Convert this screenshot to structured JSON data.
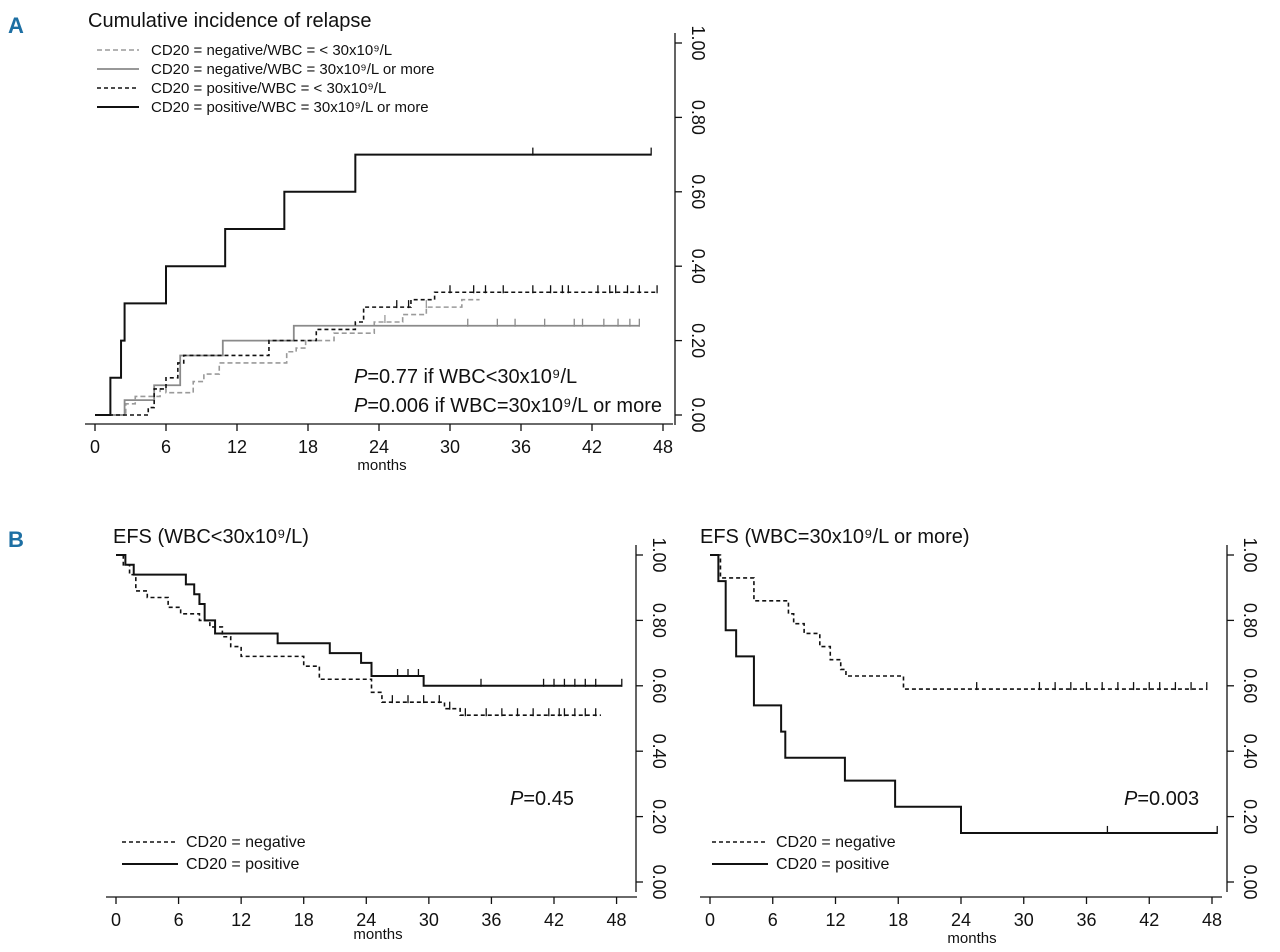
{
  "panels": {
    "a_letter": "A",
    "b_letter": "B"
  },
  "chart_data": [
    {
      "id": "A",
      "type": "line",
      "step": true,
      "title": "Cumulative incidence of relapse",
      "xlabel": "months",
      "ylabel": "",
      "xlim": [
        0,
        48
      ],
      "ylim": [
        0,
        1
      ],
      "xticks": [
        0,
        6,
        12,
        18,
        24,
        30,
        36,
        42,
        48
      ],
      "xtick_labels": [
        "0",
        "6",
        "12",
        "18",
        "24",
        "30",
        "36",
        "42",
        "48"
      ],
      "yticks": [
        0,
        0.2,
        0.4,
        0.6,
        0.8,
        1.0
      ],
      "ytick_labels": [
        "0.00",
        "0.20",
        "0.40",
        "0.60",
        "0.80",
        "1.00"
      ],
      "legend_position": "top-left",
      "series": [
        {
          "name": "CD20 = negative/WBC = < 30x10⁹/L",
          "style": "dashed-gray",
          "x": [
            0,
            2.6,
            3.4,
            5.5,
            6.0,
            8.3,
            9.2,
            10.5,
            15.5,
            16.2,
            17.0,
            17.8,
            19.2,
            20.2,
            22.0,
            23.6,
            24.5,
            26.0,
            28.0,
            31.0,
            32.5
          ],
          "y": [
            0,
            0.03,
            0.05,
            0.07,
            0.06,
            0.09,
            0.11,
            0.14,
            0.14,
            0.17,
            0.18,
            0.2,
            0.2,
            0.22,
            0.22,
            0.25,
            0.25,
            0.27,
            0.29,
            0.31,
            0.31
          ],
          "censor_x": [
            24.5,
            28.0
          ]
        },
        {
          "name": "CD20 = negative/WBC = 30x10⁹/L or more",
          "style": "solid-gray",
          "x": [
            0,
            2.5,
            5.0,
            7.2,
            10.8,
            16.8,
            23.7,
            46.0
          ],
          "y": [
            0,
            0.04,
            0.08,
            0.16,
            0.2,
            0.24,
            0.24,
            0.24
          ],
          "censor_x": [
            31.5,
            34.0,
            35.5,
            38.0,
            40.5,
            41.2,
            43.0,
            44.2,
            45.2,
            46.0
          ]
        },
        {
          "name": "CD20 = positive/WBC = < 30x10⁹/L",
          "style": "dashed-black",
          "x": [
            0,
            4.5,
            5.0,
            6.0,
            7.0,
            7.5,
            14.0,
            14.7,
            17.0,
            18.7,
            22.0,
            22.7,
            26.7,
            28.0,
            28.7,
            31.5,
            47.5
          ],
          "y": [
            0,
            0.02,
            0.07,
            0.1,
            0.14,
            0.16,
            0.16,
            0.2,
            0.2,
            0.23,
            0.25,
            0.29,
            0.31,
            0.31,
            0.33,
            0.33,
            0.33
          ],
          "censor_x": [
            25.5,
            26.5,
            30.0,
            32.0,
            33.0,
            34.5,
            37.0,
            38.5,
            39.5,
            40.0,
            42.5,
            43.5,
            44.0,
            45.0,
            46.0,
            47.5
          ]
        },
        {
          "name": "CD20 = positive/WBC = 30x10⁹/L or more",
          "style": "solid-black",
          "x": [
            0,
            1.3,
            2.2,
            2.5,
            6.0,
            11.0,
            16.0,
            22.0,
            47.0
          ],
          "y": [
            0,
            0.1,
            0.2,
            0.3,
            0.4,
            0.5,
            0.6,
            0.7,
            0.7
          ],
          "censor_x": [
            37.0,
            47.0
          ]
        }
      ],
      "annotations": [
        {
          "prefix": "P",
          "text": "=0.77 if WBC<30x10⁹/L"
        },
        {
          "prefix": "P",
          "text": "=0.006 if WBC=30x10⁹/L or more"
        }
      ]
    },
    {
      "id": "B1",
      "type": "line",
      "step": true,
      "title": "EFS (WBC<30x10⁹/L)",
      "xlabel": "months",
      "ylabel": "",
      "xlim": [
        0,
        49
      ],
      "ylim": [
        0,
        1
      ],
      "xticks": [
        0,
        6,
        12,
        18,
        24,
        30,
        36,
        42,
        48
      ],
      "xtick_labels": [
        "0",
        "6",
        "12",
        "18",
        "24",
        "30",
        "36",
        "42",
        "48"
      ],
      "yticks": [
        0,
        0.2,
        0.4,
        0.6,
        0.8,
        1.0
      ],
      "ytick_labels": [
        "0.00",
        "0.20",
        "0.40",
        "0.60",
        "0.80",
        "1.00"
      ],
      "legend_position": "bottom-left",
      "series": [
        {
          "name": "CD20 = negative",
          "style": "dashed-black",
          "x": [
            0,
            0.7,
            1.3,
            1.9,
            3.0,
            5.0,
            6.2,
            8.0,
            9.0,
            10.2,
            11.0,
            12.0,
            18.0,
            19.5,
            21.0,
            24.5,
            25.5,
            27.0,
            31.5,
            33.0,
            34.5,
            46.5
          ],
          "y": [
            1.0,
            0.97,
            0.94,
            0.89,
            0.87,
            0.84,
            0.82,
            0.8,
            0.78,
            0.75,
            0.72,
            0.69,
            0.66,
            0.62,
            0.62,
            0.58,
            0.55,
            0.55,
            0.53,
            0.51,
            0.51,
            0.51
          ],
          "censor_x": [
            26.5,
            28.0,
            29.5,
            31.0,
            32.0,
            33.5,
            35.5,
            37.0,
            38.5,
            40.0,
            41.5,
            42.5,
            43.0,
            44.0,
            45.0,
            46.0
          ]
        },
        {
          "name": "CD20 = positive",
          "style": "solid-black",
          "x": [
            0,
            0.9,
            1.7,
            6.7,
            7.5,
            8.0,
            8.5,
            9.5,
            15.5,
            20.5,
            23.5,
            24.5,
            29.5,
            48.5
          ],
          "y": [
            1.0,
            0.97,
            0.94,
            0.91,
            0.88,
            0.85,
            0.8,
            0.76,
            0.73,
            0.7,
            0.67,
            0.63,
            0.6,
            0.6
          ],
          "censor_x": [
            27.0,
            28.0,
            29.0,
            35.0,
            41.0,
            42.0,
            43.0,
            44.0,
            45.0,
            46.0,
            48.5
          ]
        }
      ],
      "annotations": [
        {
          "prefix": "P",
          "text": "=0.45"
        }
      ]
    },
    {
      "id": "B2",
      "type": "line",
      "step": true,
      "title": "EFS (WBC=30x10⁹/L or more)",
      "xlabel": "months",
      "ylabel": "",
      "xlim": [
        0,
        48
      ],
      "ylim": [
        0,
        1
      ],
      "xticks": [
        0,
        6,
        12,
        18,
        24,
        30,
        36,
        42,
        48
      ],
      "xtick_labels": [
        "0",
        "6",
        "12",
        "18",
        "24",
        "30",
        "36",
        "42",
        "48"
      ],
      "yticks": [
        0,
        0.2,
        0.4,
        0.6,
        0.8,
        1.0
      ],
      "ytick_labels": [
        "0.00",
        "0.20",
        "0.40",
        "0.60",
        "0.80",
        "1.00"
      ],
      "legend_position": "bottom-left",
      "series": [
        {
          "name": "CD20 = negative",
          "style": "dashed-black",
          "x": [
            0,
            1.0,
            4.2,
            7.5,
            8.0,
            9.0,
            10.5,
            11.5,
            12.5,
            13.0,
            18.5,
            47.5
          ],
          "y": [
            1.0,
            0.93,
            0.86,
            0.82,
            0.79,
            0.76,
            0.72,
            0.68,
            0.65,
            0.63,
            0.59,
            0.59
          ],
          "censor_x": [
            25.5,
            31.5,
            33.0,
            34.5,
            36.0,
            37.5,
            39.0,
            40.5,
            42.0,
            43.0,
            44.5,
            46.0,
            47.5
          ]
        },
        {
          "name": "CD20 = positive",
          "style": "solid-black",
          "x": [
            0,
            0.8,
            1.5,
            2.5,
            4.2,
            6.8,
            7.2,
            12.9,
            17.7,
            24.0,
            48.5
          ],
          "y": [
            1.0,
            0.92,
            0.77,
            0.69,
            0.54,
            0.46,
            0.38,
            0.31,
            0.23,
            0.15,
            0.15
          ],
          "censor_x": [
            38.0,
            48.5
          ]
        }
      ],
      "annotations": [
        {
          "prefix": "P",
          "text": "=0.003"
        }
      ]
    }
  ]
}
